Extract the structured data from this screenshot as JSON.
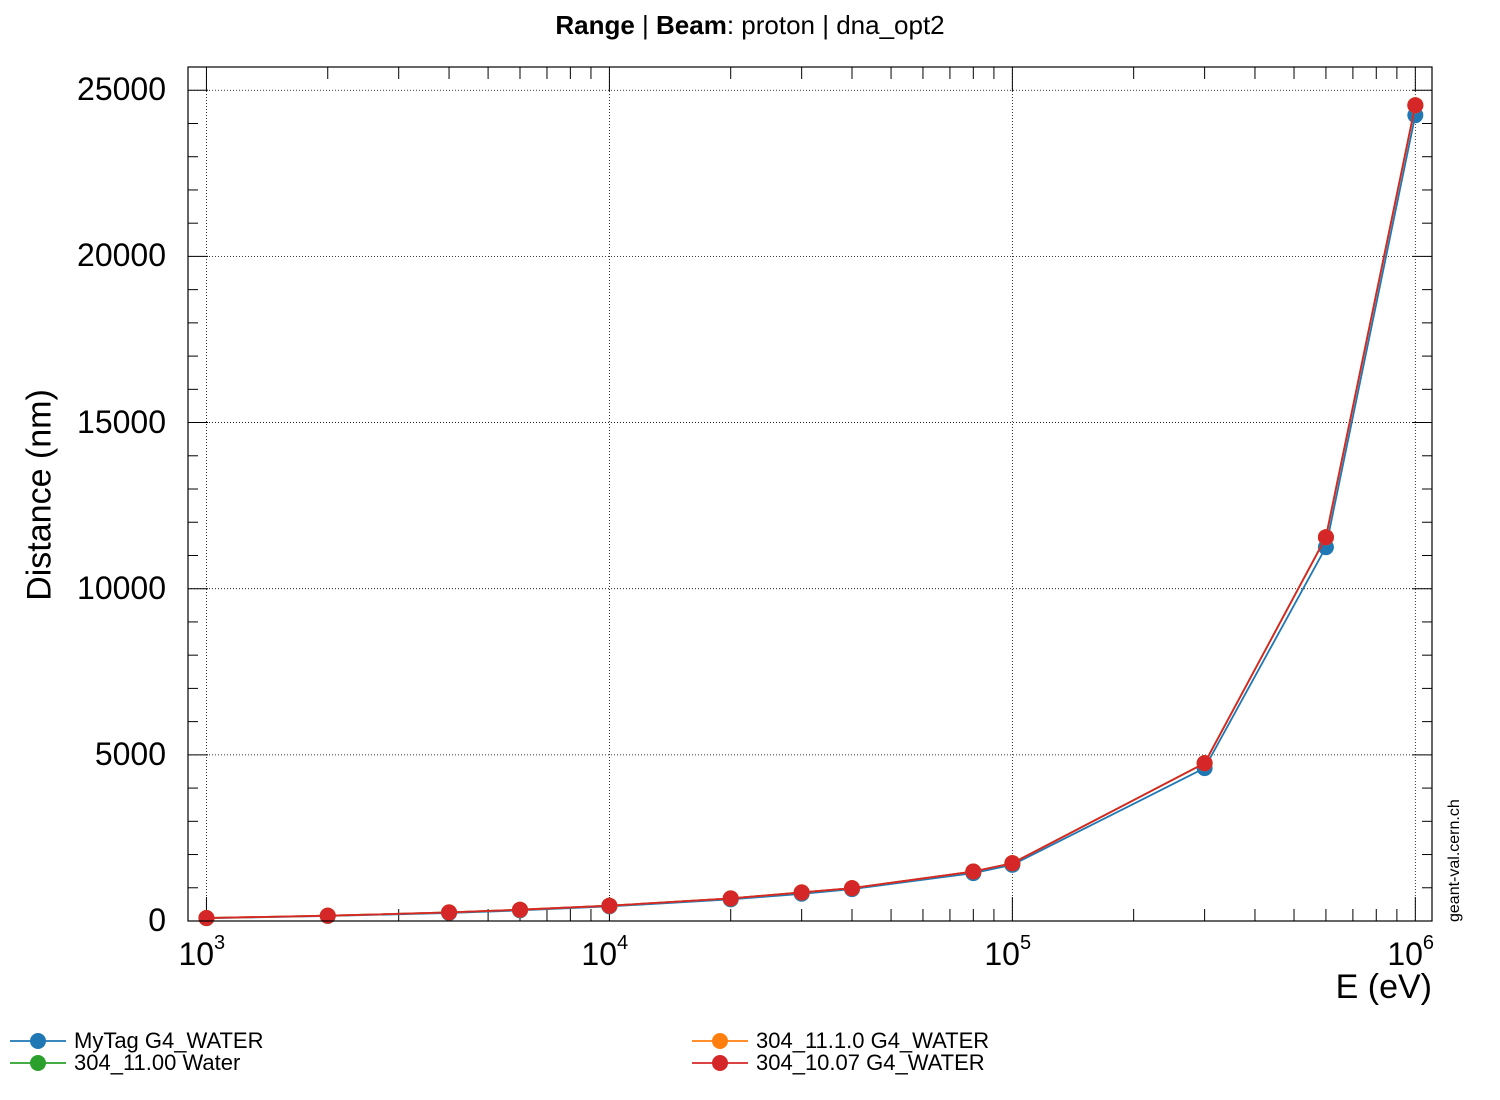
{
  "title": {
    "bold_1": "Range",
    "sep_1": " | ",
    "bold_2": "Beam",
    "rest": ": proton | dna_opt2"
  },
  "watermark": "geant-val.cern.ch",
  "chart_data": {
    "type": "line",
    "xlabel": "E (eV)",
    "ylabel": "Distance (nm)",
    "xscale": "log",
    "xlim": [
      900,
      1100000
    ],
    "ylim": [
      0,
      25700
    ],
    "grid": true,
    "legend_position": "bottom",
    "x_tick_labels": [
      {
        "base": "10",
        "exp": "3"
      },
      {
        "base": "10",
        "exp": "4"
      },
      {
        "base": "10",
        "exp": "5"
      },
      {
        "base": "10",
        "exp": "6"
      }
    ],
    "y_tick_labels": [
      "0",
      "5000",
      "10000",
      "15000",
      "20000",
      "25000"
    ],
    "x": [
      1000,
      2000,
      4000,
      6000,
      10000,
      20000,
      30000,
      40000,
      80000,
      100000,
      300000,
      600000,
      1000000
    ],
    "series": [
      {
        "name": "MyTag G4_WATER",
        "color": "#1f77b4",
        "values": [
          85,
          150,
          240,
          320,
          440,
          650,
          820,
          960,
          1440,
          1690,
          4600,
          11250,
          24250
        ]
      },
      {
        "name": "304_11.00 Water",
        "color": "#2ca02c",
        "values": [
          90,
          160,
          260,
          340,
          460,
          680,
          860,
          990,
          1490,
          1740,
          4750,
          11550,
          24550
        ]
      },
      {
        "name": "304_11.1.0 G4_WATER",
        "color": "#ff7f0e",
        "values": [
          90,
          160,
          260,
          340,
          460,
          680,
          860,
          990,
          1490,
          1740,
          4750,
          11550,
          24550
        ]
      },
      {
        "name": "304_10.07 G4_WATER",
        "color": "#d62728",
        "values": [
          90,
          160,
          260,
          340,
          460,
          680,
          860,
          990,
          1490,
          1740,
          4750,
          11550,
          24550
        ]
      }
    ]
  }
}
